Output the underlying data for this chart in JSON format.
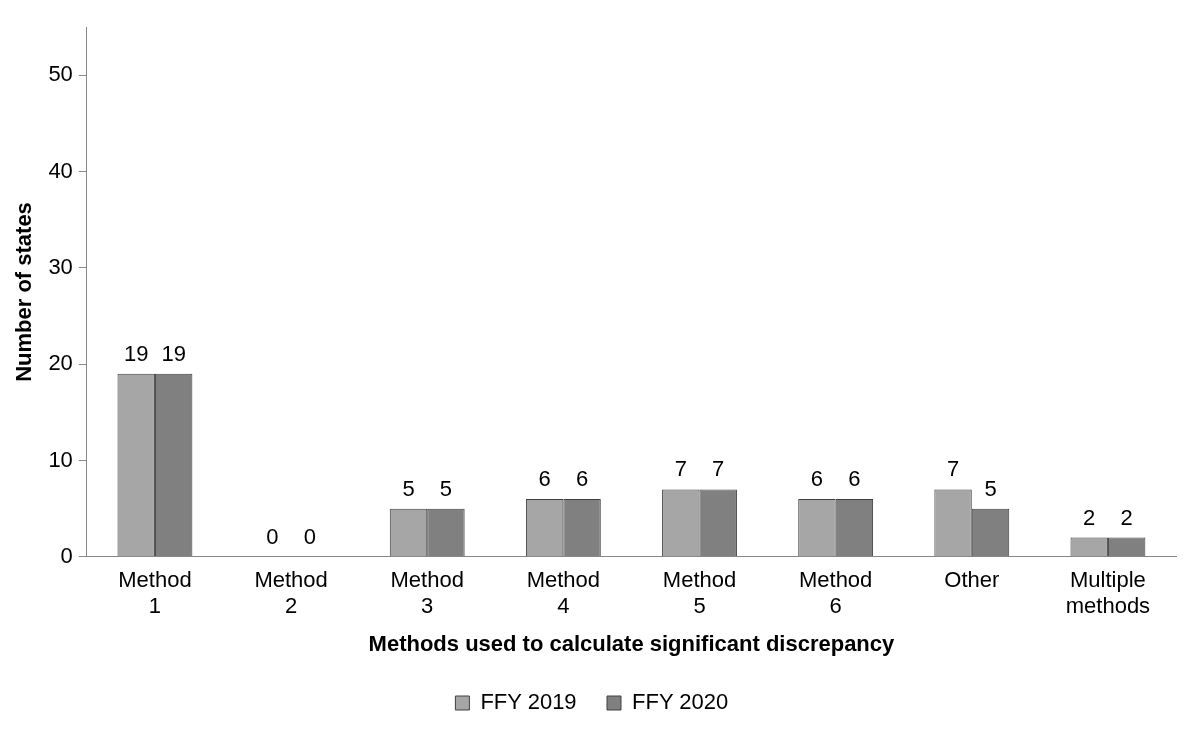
{
  "chart_data": {
    "type": "bar",
    "xlabel": "Methods used to calculate significant discrepancy",
    "ylabel": "Number of states",
    "categories": [
      "Method 1",
      "Method 2",
      "Method 3",
      "Method 4",
      "Method 5",
      "Method 6",
      "Other",
      "Multiple methods"
    ],
    "series": [
      {
        "name": "FFY 2019",
        "color": "#a6a6a6",
        "values": [
          19,
          0,
          5,
          6,
          7,
          6,
          7,
          2
        ]
      },
      {
        "name": "FFY 2020",
        "color": "#808080",
        "values": [
          19,
          0,
          5,
          6,
          7,
          6,
          5,
          2
        ]
      }
    ],
    "ylim": [
      0,
      55
    ],
    "yticks": [
      0,
      10,
      20,
      30,
      40,
      50
    ],
    "grid": false,
    "legend": "bottom",
    "data_labels": true
  }
}
